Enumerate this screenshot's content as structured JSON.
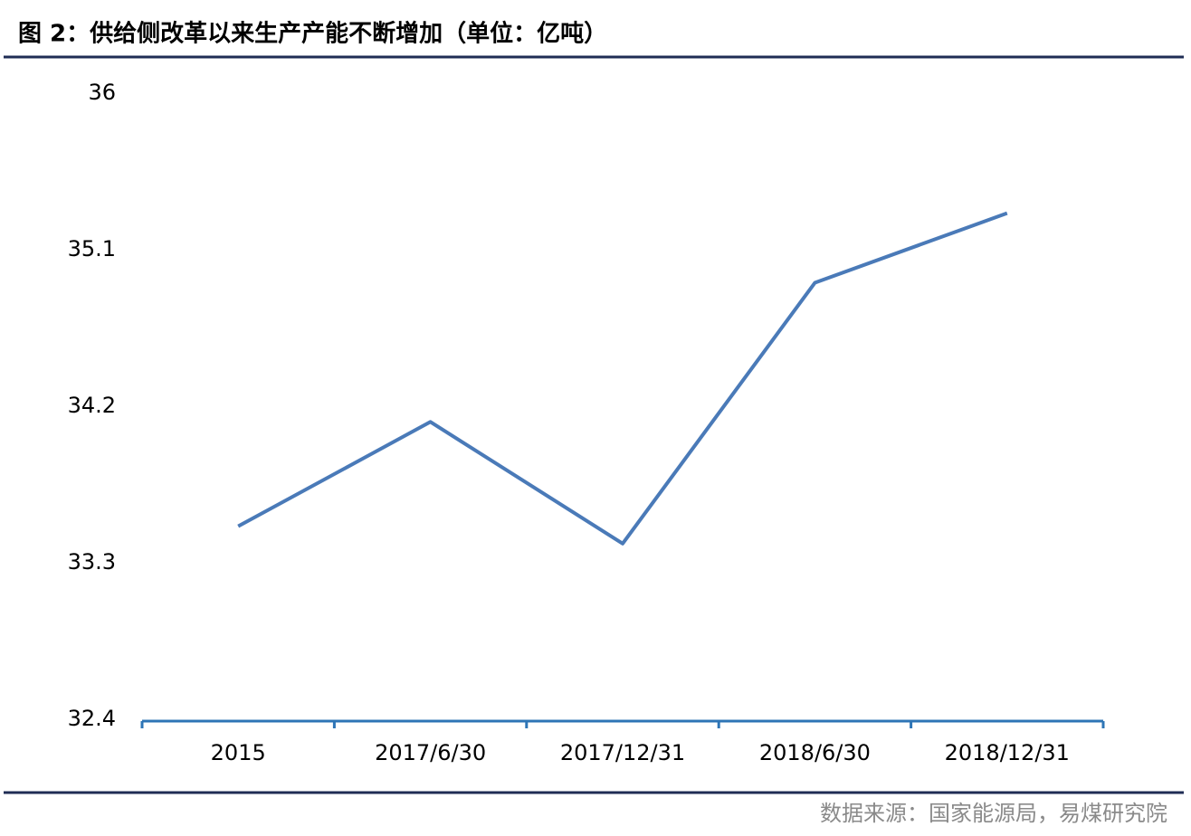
{
  "chart_data": {
    "type": "line",
    "title": "图 2：供给侧改革以来生产产能不断增加（单位：亿吨）",
    "source": "数据来源：国家能源局，易煤研究院",
    "categories": [
      "2015",
      "2017/6/30",
      "2017/12/31",
      "2018/6/30",
      "2018/12/31"
    ],
    "series": [
      {
        "name": "产能",
        "color": "#4a7ab8",
        "values": [
          33.51,
          34.11,
          33.41,
          34.91,
          35.31
        ]
      }
    ],
    "ylim": [
      32.4,
      36
    ],
    "yticks": [
      32.4,
      33.3,
      34.2,
      35.1,
      36
    ],
    "axis_color": "#2e75b6"
  }
}
